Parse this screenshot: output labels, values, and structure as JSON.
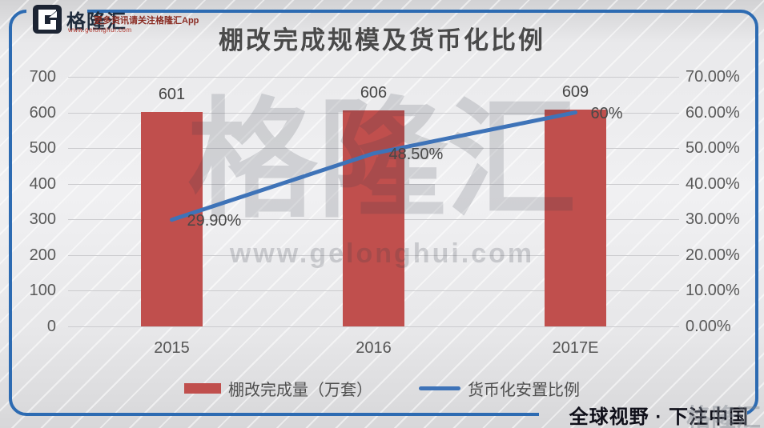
{
  "header": {
    "logo_name": "格隆汇",
    "logo_site": "www.gelonghui.com",
    "tagline": "更多资讯请关注格隆汇App"
  },
  "watermark": {
    "brand": "格隆汇",
    "site": "www.gelonghui.com",
    "corner_brand": "格隆汇"
  },
  "footer": {
    "slogan": "全球视野 · 下注中国"
  },
  "colors": {
    "bar": "#c04f4d",
    "line": "#3e73b8",
    "frame": "#2d6bb2"
  },
  "chart_data": {
    "type": "bar",
    "combo": true,
    "title": "棚改完成规模及货币化比例",
    "categories": [
      "2015",
      "2016",
      "2017E"
    ],
    "series": [
      {
        "name": "棚改完成量（万套）",
        "kind": "bar",
        "axis": "left",
        "values": [
          601,
          606,
          609
        ],
        "data_labels": [
          "601",
          "606",
          "609"
        ],
        "color": "#c04f4d"
      },
      {
        "name": "货币化安置比例",
        "kind": "line",
        "axis": "right",
        "values": [
          29.9,
          48.5,
          60
        ],
        "data_labels": [
          "29.90%",
          "48.50%",
          "60%"
        ],
        "color": "#3e73b8"
      }
    ],
    "left_axis": {
      "min": 0,
      "max": 700,
      "ticks": [
        "700",
        "600",
        "500",
        "400",
        "300",
        "200",
        "100",
        "0"
      ]
    },
    "right_axis": {
      "min": 0,
      "max": 70,
      "ticks": [
        "70.00%",
        "60.00%",
        "50.00%",
        "40.00%",
        "30.00%",
        "20.00%",
        "10.00%",
        "0.00%"
      ]
    },
    "grid": true,
    "legend_position": "bottom"
  }
}
